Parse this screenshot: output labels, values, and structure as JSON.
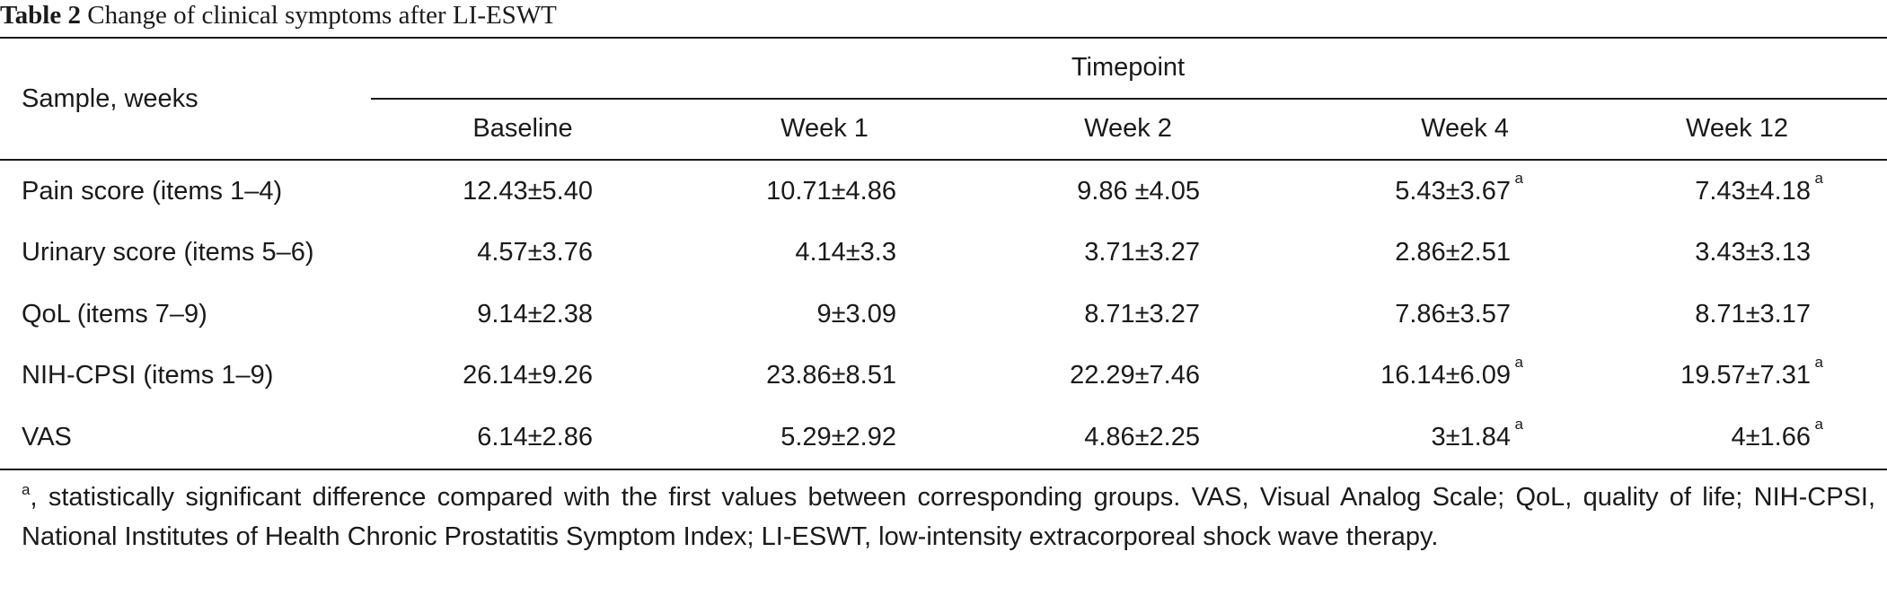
{
  "caption": {
    "label": "Table 2",
    "title": "Change of clinical symptoms after LI-ESWT"
  },
  "table": {
    "row_header": "Sample, weeks",
    "group_header": "Timepoint",
    "columns": [
      "Baseline",
      "Week 1",
      "Week 2",
      "Week 4",
      "Week 12"
    ],
    "rows": [
      {
        "label": "Pain score (items 1–4)",
        "cells": [
          {
            "value": "12.43±5.40",
            "sup": ""
          },
          {
            "value": "10.71±4.86",
            "sup": ""
          },
          {
            "value": "9.86 ±4.05",
            "sup": ""
          },
          {
            "value": "5.43±3.67",
            "sup": "a"
          },
          {
            "value": "7.43±4.18",
            "sup": "a"
          }
        ]
      },
      {
        "label": "Urinary score (items 5–6)",
        "cells": [
          {
            "value": "4.57±3.76",
            "sup": ""
          },
          {
            "value": "4.14±3.3",
            "sup": ""
          },
          {
            "value": "3.71±3.27",
            "sup": ""
          },
          {
            "value": "2.86±2.51",
            "sup": ""
          },
          {
            "value": "3.43±3.13",
            "sup": ""
          }
        ]
      },
      {
        "label": "QoL (items 7–9)",
        "cells": [
          {
            "value": "9.14±2.38",
            "sup": ""
          },
          {
            "value": "9±3.09",
            "sup": ""
          },
          {
            "value": "8.71±3.27",
            "sup": ""
          },
          {
            "value": "7.86±3.57",
            "sup": ""
          },
          {
            "value": "8.71±3.17",
            "sup": ""
          }
        ]
      },
      {
        "label": "NIH-CPSI (items 1–9)",
        "cells": [
          {
            "value": "26.14±9.26",
            "sup": ""
          },
          {
            "value": "23.86±8.51",
            "sup": ""
          },
          {
            "value": "22.29±7.46",
            "sup": ""
          },
          {
            "value": "16.14±6.09",
            "sup": "a"
          },
          {
            "value": "19.57±7.31",
            "sup": "a"
          }
        ]
      },
      {
        "label": "VAS",
        "cells": [
          {
            "value": "6.14±2.86",
            "sup": ""
          },
          {
            "value": "5.29±2.92",
            "sup": ""
          },
          {
            "value": "4.86±2.25",
            "sup": ""
          },
          {
            "value": "3±1.84",
            "sup": "a"
          },
          {
            "value": "4±1.66",
            "sup": "a"
          }
        ]
      }
    ]
  },
  "footnote": {
    "marker": "a",
    "text": ", statistically significant difference compared with the first values between corresponding groups. VAS, Visual Analog Scale; QoL, quality of life; NIH-CPSI, National Institutes of Health Chronic Prostatitis Symptom Index; LI-ESWT, low-intensity extracorporeal shock wave therapy."
  }
}
